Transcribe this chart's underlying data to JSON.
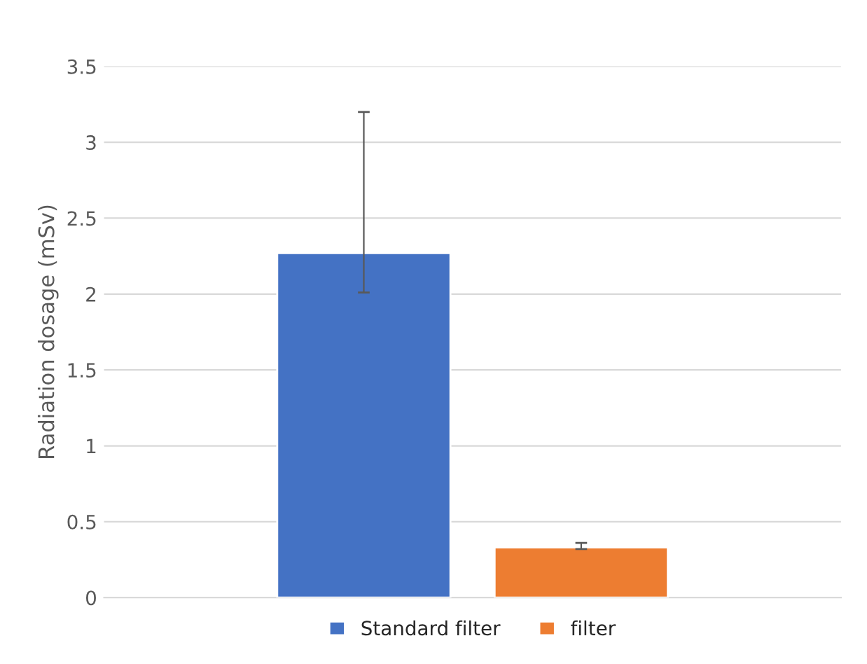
{
  "chart_data": {
    "type": "bar",
    "ylabel": "Radiation dosage (mSv)",
    "categories": [
      null
    ],
    "series": [
      {
        "name": "Standard filter",
        "color": "#4472c4",
        "values": [
          2.27
        ],
        "errors": [
          [
            2.01,
            3.2
          ]
        ]
      },
      {
        "name": "filter",
        "color": "#ed7d31",
        "values": [
          0.33
        ],
        "errors": [
          [
            0.32,
            0.36
          ]
        ]
      }
    ],
    "ylim": [
      0,
      3.5
    ],
    "yticks": [
      0,
      0.5,
      1,
      1.5,
      2,
      2.5,
      3,
      3.5
    ],
    "grid": "y",
    "legend": "bottom"
  }
}
